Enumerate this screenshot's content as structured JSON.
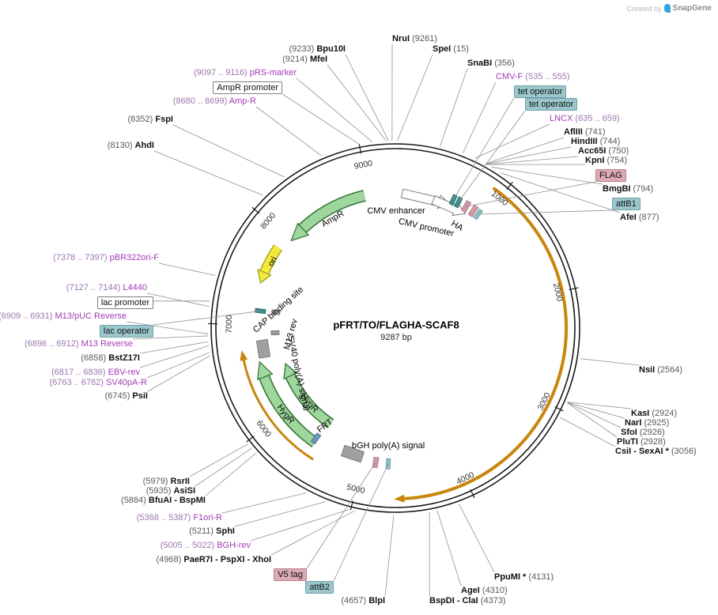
{
  "watermark": {
    "created_by": "Created by",
    "brand": "SnapGene"
  },
  "plasmid": {
    "name": "pFRT/TO/FLAGHA-SCAF8",
    "size": "9287 bp"
  },
  "ticks": [
    "1000",
    "2000",
    "3000",
    "4000",
    "5000",
    "6000",
    "7000",
    "8000",
    "9000"
  ],
  "enzymes": [
    {
      "name": "NruI",
      "pos": "(9261)"
    },
    {
      "name": "SpeI",
      "pos": "(15)"
    },
    {
      "name": "SnaBI",
      "pos": "(356)"
    },
    {
      "name": "Bpu10I",
      "pos": "(9233)"
    },
    {
      "name": "MfeI",
      "pos": "(9214)"
    },
    {
      "name": "AflIII",
      "pos": "(741)"
    },
    {
      "name": "HindIII",
      "pos": "(744)"
    },
    {
      "name": "Acc65I",
      "pos": "(750)"
    },
    {
      "name": "KpnI",
      "pos": "(754)"
    },
    {
      "name": "BmgBI",
      "pos": "(794)"
    },
    {
      "name": "AfeI",
      "pos": "(877)"
    },
    {
      "name": "NsiI",
      "pos": "(2564)"
    },
    {
      "name": "KasI",
      "pos": "(2924)"
    },
    {
      "name": "NarI",
      "pos": "(2925)"
    },
    {
      "name": "SfoI",
      "pos": "(2926)"
    },
    {
      "name": "PluTI",
      "pos": "(2928)"
    },
    {
      "name": "CsiI - SexAI *",
      "pos": "(3056)"
    },
    {
      "name": "PpuMI *",
      "pos": "(4131)"
    },
    {
      "name": "AgeI",
      "pos": "(4310)"
    },
    {
      "name": "BspDI - ClaI",
      "pos": "(4373)"
    },
    {
      "name": "BlpI",
      "pos": "(4657)"
    },
    {
      "name": "PaeR7I - PspXI - XhoI",
      "pos": "(4968)"
    },
    {
      "name": "SphI",
      "pos": "(5211)"
    },
    {
      "name": "BfuAI - BspMI",
      "pos": "(5884)"
    },
    {
      "name": "AsiSI",
      "pos": "(5935)"
    },
    {
      "name": "RsrII",
      "pos": "(5979)"
    },
    {
      "name": "PsiI",
      "pos": "(6745)"
    },
    {
      "name": "BstZ17I",
      "pos": "(6858)"
    },
    {
      "name": "AhdI",
      "pos": "(8130)"
    },
    {
      "name": "FspI",
      "pos": "(8352)"
    }
  ],
  "primers": [
    {
      "name": "CMV-F",
      "range": "(535 .. 555)"
    },
    {
      "name": "LNCX",
      "range": "(635 .. 659)"
    },
    {
      "name": "BGH-rev",
      "range": "(5005 .. 5022)"
    },
    {
      "name": "F1ori-R",
      "range": "(5368 .. 5387)"
    },
    {
      "name": "SV40pA-R",
      "range": "(6763 .. 6782)"
    },
    {
      "name": "EBV-rev",
      "range": "(6817 .. 6836)"
    },
    {
      "name": "M13 Reverse",
      "range": "(6896 .. 6912)"
    },
    {
      "name": "M13/pUC Reverse",
      "range": "(6909 .. 6931)"
    },
    {
      "name": "L4440",
      "range": "(7127 .. 7144)"
    },
    {
      "name": "pBR322ori-F",
      "range": "(7378 .. 7397)"
    },
    {
      "name": "Amp-R",
      "range": "(8680 .. 8699)"
    },
    {
      "name": "pRS-marker",
      "range": "(9097 .. 9116)"
    }
  ],
  "boxed_sites": [
    "tet operator",
    "tet operator",
    "attB1",
    "attB2",
    "lac operator"
  ],
  "tags": [
    "FLAG",
    "V5 tag"
  ],
  "outlined_labels": [
    "AmpR promoter",
    "lac promoter"
  ],
  "features": {
    "cmv_enhancer": "CMV enhancer",
    "cmv_promoter": "CMV promoter",
    "ha": "HA",
    "ampr": "AmpR",
    "ori": "ori",
    "cap": "CAP binding site",
    "m13_rev": "M13 rev",
    "sv40_pa": "SV40 poly(A) signal",
    "hygr": "HygR",
    "frt": "FRT",
    "bgh_pa": "bGH poly(A) signal"
  },
  "colors": {
    "backbone": "#1a1a1a",
    "orf_gold": "#C8860D",
    "cds_green": "#9ED69E",
    "ori_yellow": "#F2E93B",
    "primer_purple": "#A23BB4",
    "site_teal": "#9BC7CC",
    "tag_pink": "#DCA9B4"
  }
}
